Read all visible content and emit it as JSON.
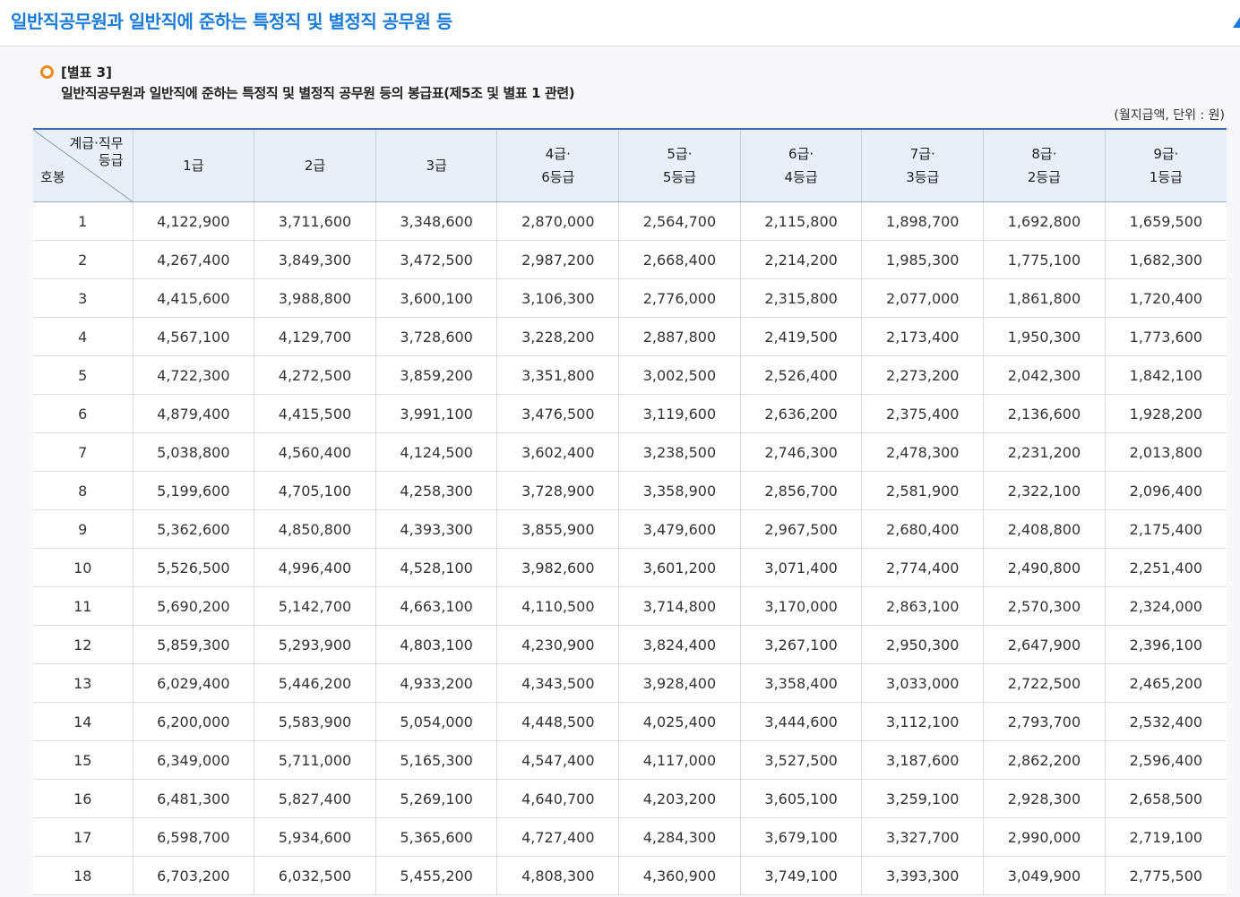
{
  "page": {
    "title": "일반직공무원과 일반직에 준하는 특정직 및 별정직 공무원 등"
  },
  "annex": {
    "label": "[별표 3]",
    "description": "일반직공무원과 일반직에 준하는 특정직 및 별정직 공무원 등의 봉급표(제5조 및 별표 1 관련)",
    "unit_note": "(월지급액, 단위 : 원)"
  },
  "table": {
    "corner_top_line1": "계급·직무",
    "corner_top_line2": "등급",
    "corner_bottom": "호봉",
    "columns": [
      {
        "line1": "1급",
        "line2": ""
      },
      {
        "line1": "2급",
        "line2": ""
      },
      {
        "line1": "3급",
        "line2": ""
      },
      {
        "line1": "4급·",
        "line2": "6등급"
      },
      {
        "line1": "5급·",
        "line2": "5등급"
      },
      {
        "line1": "6급·",
        "line2": "4등급"
      },
      {
        "line1": "7급·",
        "line2": "3등급"
      },
      {
        "line1": "8급·",
        "line2": "2등급"
      },
      {
        "line1": "9급·",
        "line2": "1등급"
      }
    ],
    "rows": [
      [
        "1",
        "4,122,900",
        "3,711,600",
        "3,348,600",
        "2,870,000",
        "2,564,700",
        "2,115,800",
        "1,898,700",
        "1,692,800",
        "1,659,500"
      ],
      [
        "2",
        "4,267,400",
        "3,849,300",
        "3,472,500",
        "2,987,200",
        "2,668,400",
        "2,214,200",
        "1,985,300",
        "1,775,100",
        "1,682,300"
      ],
      [
        "3",
        "4,415,600",
        "3,988,800",
        "3,600,100",
        "3,106,300",
        "2,776,000",
        "2,315,800",
        "2,077,000",
        "1,861,800",
        "1,720,400"
      ],
      [
        "4",
        "4,567,100",
        "4,129,700",
        "3,728,600",
        "3,228,200",
        "2,887,800",
        "2,419,500",
        "2,173,400",
        "1,950,300",
        "1,773,600"
      ],
      [
        "5",
        "4,722,300",
        "4,272,500",
        "3,859,200",
        "3,351,800",
        "3,002,500",
        "2,526,400",
        "2,273,200",
        "2,042,300",
        "1,842,100"
      ],
      [
        "6",
        "4,879,400",
        "4,415,500",
        "3,991,100",
        "3,476,500",
        "3,119,600",
        "2,636,200",
        "2,375,400",
        "2,136,600",
        "1,928,200"
      ],
      [
        "7",
        "5,038,800",
        "4,560,400",
        "4,124,500",
        "3,602,400",
        "3,238,500",
        "2,746,300",
        "2,478,300",
        "2,231,200",
        "2,013,800"
      ],
      [
        "8",
        "5,199,600",
        "4,705,100",
        "4,258,300",
        "3,728,900",
        "3,358,900",
        "2,856,700",
        "2,581,900",
        "2,322,100",
        "2,096,400"
      ],
      [
        "9",
        "5,362,600",
        "4,850,800",
        "4,393,300",
        "3,855,900",
        "3,479,600",
        "2,967,500",
        "2,680,400",
        "2,408,800",
        "2,175,400"
      ],
      [
        "10",
        "5,526,500",
        "4,996,400",
        "4,528,100",
        "3,982,600",
        "3,601,200",
        "3,071,400",
        "2,774,400",
        "2,490,800",
        "2,251,400"
      ],
      [
        "11",
        "5,690,200",
        "5,142,700",
        "4,663,100",
        "4,110,500",
        "3,714,800",
        "3,170,000",
        "2,863,100",
        "2,570,300",
        "2,324,000"
      ],
      [
        "12",
        "5,859,300",
        "5,293,900",
        "4,803,100",
        "4,230,900",
        "3,824,400",
        "3,267,100",
        "2,950,300",
        "2,647,900",
        "2,396,100"
      ],
      [
        "13",
        "6,029,400",
        "5,446,200",
        "4,933,200",
        "4,343,500",
        "3,928,400",
        "3,358,400",
        "3,033,000",
        "2,722,500",
        "2,465,200"
      ],
      [
        "14",
        "6,200,000",
        "5,583,900",
        "5,054,000",
        "4,448,500",
        "4,025,400",
        "3,444,600",
        "3,112,100",
        "2,793,700",
        "2,532,400"
      ],
      [
        "15",
        "6,349,000",
        "5,711,000",
        "5,165,300",
        "4,547,400",
        "4,117,000",
        "3,527,500",
        "3,187,600",
        "2,862,200",
        "2,596,400"
      ],
      [
        "16",
        "6,481,300",
        "5,827,400",
        "5,269,100",
        "4,640,700",
        "4,203,200",
        "3,605,100",
        "3,259,100",
        "2,928,300",
        "2,658,500"
      ],
      [
        "17",
        "6,598,700",
        "5,934,600",
        "5,365,600",
        "4,727,400",
        "4,284,300",
        "3,679,100",
        "3,327,700",
        "2,990,000",
        "2,719,100"
      ],
      [
        "18",
        "6,703,200",
        "6,032,500",
        "5,455,200",
        "4,808,300",
        "4,360,900",
        "3,749,100",
        "3,393,300",
        "3,049,900",
        "2,775,500"
      ]
    ]
  }
}
